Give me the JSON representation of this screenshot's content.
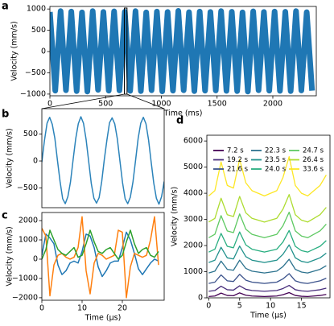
{
  "chart_data": [
    {
      "type": "line",
      "panel": "a",
      "xlabel": "Time (ms)",
      "ylabel": "Velocity (mm/s)",
      "xlim": [
        0,
        2390
      ],
      "ylim": [
        -1040,
        1060
      ],
      "xticks": [
        0,
        500,
        1000,
        1500,
        2000
      ],
      "yticks": [
        {
          "value": -1000,
          "label": "−1000"
        },
        {
          "value": -500,
          "label": "−500"
        },
        0,
        500,
        1000
      ],
      "highlight": [
        668,
        692
      ],
      "x": [
        0,
        48,
        96,
        144,
        192,
        240,
        288,
        336,
        384,
        432,
        480,
        528,
        576,
        624,
        672,
        720,
        768,
        816,
        864,
        912,
        960,
        1008,
        1056,
        1104,
        1152,
        1200,
        1248,
        1296,
        1344,
        1392,
        1440,
        1488,
        1536,
        1584,
        1632,
        1680,
        1728,
        1776,
        1824,
        1872,
        1920,
        1968,
        2016,
        2064,
        2112,
        2160,
        2208,
        2256,
        2304,
        2352
      ],
      "series": [
        {
          "color": "#1f77b4",
          "values": [
            930,
            -920,
            950,
            -910,
            940,
            -930,
            920,
            -940,
            950,
            -900,
            930,
            -920,
            945,
            -915,
            935,
            -925,
            950,
            -930,
            920,
            -910,
            940,
            -935,
            930,
            -920,
            955,
            -910,
            925,
            -930,
            940,
            -920,
            930,
            -915,
            950,
            -925,
            935,
            -930,
            920,
            -940,
            945,
            -910,
            930,
            -920,
            940,
            -925,
            935,
            -930,
            950,
            -915,
            925,
            -920
          ]
        }
      ]
    },
    {
      "type": "line",
      "panel": "b",
      "ylabel": "Velocity (mm/s)",
      "ylim": [
        -865,
        970
      ],
      "yticks": [
        {
          "value": -500,
          "label": "−500"
        },
        0,
        500
      ],
      "series": [
        {
          "color": "#2b83ba",
          "values": [
            -20,
            380,
            700,
            810,
            680,
            420,
            10,
            -380,
            -700,
            -790,
            -660,
            -390,
            20,
            410,
            690,
            820,
            700,
            400,
            -10,
            -420,
            -690,
            -780,
            -680,
            -380,
            30,
            390,
            710,
            800,
            690,
            410,
            0,
            -400,
            -700,
            -790,
            -670,
            -390,
            10,
            420,
            700,
            810,
            690,
            390,
            -20,
            -410,
            -690,
            -800,
            -660,
            -380
          ]
        }
      ]
    },
    {
      "type": "line",
      "panel": "c",
      "xlabel": "Time (μs)",
      "ylabel": "Velocity (mm/s)",
      "xlim": [
        0,
        30.4
      ],
      "ylim": [
        -2130,
        2420
      ],
      "xticks": [
        0,
        10,
        20
      ],
      "yticks": [
        {
          "value": -2000,
          "label": "−2000"
        },
        {
          "value": -1000,
          "label": "−1000"
        },
        0,
        1000,
        2000
      ],
      "x": [
        0,
        1,
        2,
        3,
        4,
        5,
        6,
        7,
        8,
        9,
        10,
        11,
        12,
        13,
        14,
        15,
        16,
        17,
        18,
        19,
        20,
        21,
        22,
        23,
        24,
        25,
        26,
        27,
        28,
        29
      ],
      "series": [
        {
          "color": "#1f77b4",
          "values": [
            200,
            1300,
            1100,
            800,
            -300,
            -800,
            -600,
            -200,
            -100,
            -200,
            400,
            1300,
            1200,
            600,
            -400,
            -900,
            -600,
            -200,
            -100,
            -100,
            600,
            1400,
            1000,
            300,
            -500,
            -800,
            -500,
            -200,
            0,
            -100
          ]
        },
        {
          "color": "#ff7f0e",
          "values": [
            1600,
            1200,
            -1900,
            -300,
            200,
            300,
            100,
            0,
            100,
            600,
            2200,
            -600,
            -1800,
            -200,
            300,
            200,
            0,
            100,
            200,
            1500,
            1400,
            -2000,
            -400,
            300,
            200,
            100,
            200,
            1000,
            2200,
            -300
          ]
        },
        {
          "color": "#2ca02c",
          "values": [
            0,
            500,
            1500,
            1000,
            500,
            300,
            200,
            400,
            600,
            100,
            200,
            800,
            1500,
            900,
            400,
            300,
            500,
            600,
            300,
            0,
            200,
            900,
            1500,
            800,
            300,
            500,
            600,
            200,
            100,
            400
          ]
        }
      ]
    },
    {
      "type": "line",
      "panel": "d",
      "xlabel": "Time (μs)",
      "ylabel": "Velocity (mm/s)",
      "xlim": [
        -0.3,
        19.6
      ],
      "ylim": [
        0,
        6220
      ],
      "xticks": [
        0,
        5,
        10,
        15
      ],
      "yticks": [
        0,
        1000,
        2000,
        3000,
        4000,
        5000,
        6000
      ],
      "legend": "upper left",
      "x": [
        0,
        1,
        2,
        3,
        4,
        5,
        6,
        7,
        8,
        9,
        10,
        11,
        12,
        13,
        14,
        15,
        16,
        17,
        18,
        19
      ],
      "series": [
        {
          "name": "7.2 s",
          "color": "#440154",
          "values": [
            50,
            70,
            180,
            90,
            80,
            190,
            100,
            70,
            60,
            50,
            60,
            70,
            120,
            200,
            90,
            60,
            50,
            70,
            90,
            130
          ]
        },
        {
          "name": "19.2 s",
          "color": "#472d7b",
          "values": [
            250,
            280,
            445,
            310,
            295,
            460,
            325,
            280,
            265,
            250,
            265,
            280,
            355,
            475,
            310,
            265,
            250,
            280,
            310,
            370
          ]
        },
        {
          "name": "21.6 s",
          "color": "#3b528b",
          "values": [
            550,
            600,
            875,
            650,
            625,
            900,
            675,
            600,
            575,
            550,
            575,
            600,
            725,
            925,
            650,
            575,
            550,
            600,
            650,
            750
          ]
        },
        {
          "name": "22.3 s",
          "color": "#2c728e",
          "values": [
            950,
            1020,
            1405,
            1090,
            1055,
            1440,
            1125,
            1020,
            985,
            950,
            985,
            1020,
            1195,
            1475,
            1090,
            985,
            950,
            1020,
            1090,
            1230
          ]
        },
        {
          "name": "23.5 s",
          "color": "#21918c",
          "values": [
            1350,
            1440,
            1935,
            1530,
            1485,
            1980,
            1575,
            1440,
            1395,
            1350,
            1395,
            1440,
            1665,
            2025,
            1530,
            1395,
            1350,
            1440,
            1530,
            1710
          ]
        },
        {
          "name": "24.0 s",
          "color": "#28ae80",
          "values": [
            1750,
            1860,
            2465,
            1970,
            1915,
            2520,
            2025,
            1860,
            1805,
            1750,
            1805,
            1860,
            2135,
            2575,
            1970,
            1805,
            1750,
            1860,
            1970,
            2190
          ]
        },
        {
          "name": "24.7 s",
          "color": "#5ec962",
          "values": [
            2300,
            2430,
            3145,
            2560,
            2495,
            3210,
            2625,
            2430,
            2365,
            2300,
            2365,
            2430,
            2755,
            3275,
            2560,
            2365,
            2300,
            2430,
            2560,
            2820
          ]
        },
        {
          "name": "26.4 s",
          "color": "#addc30",
          "values": [
            2900,
            3040,
            3810,
            3180,
            3110,
            3880,
            3250,
            3040,
            2970,
            2900,
            2970,
            3040,
            3390,
            3950,
            3180,
            2970,
            2900,
            3040,
            3180,
            3460
          ]
        },
        {
          "name": "33.6 s",
          "color": "#fde725",
          "values": [
            3900,
            4100,
            5200,
            4300,
            4200,
            5300,
            4400,
            4100,
            4000,
            3900,
            4000,
            4100,
            4600,
            5400,
            4300,
            4000,
            3900,
            4100,
            4300,
            4700
          ]
        }
      ]
    }
  ]
}
